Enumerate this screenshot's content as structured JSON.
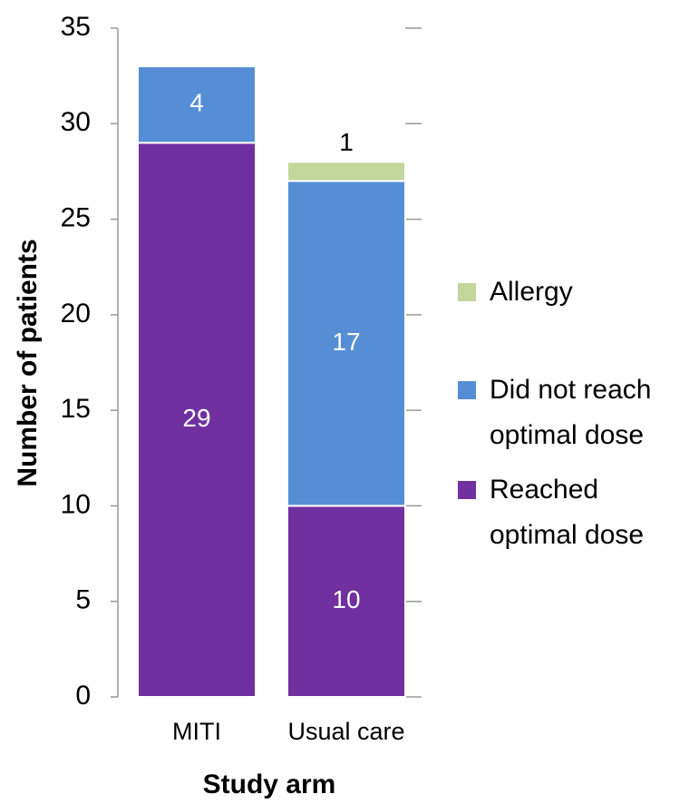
{
  "chart_data": {
    "type": "stacked_bar",
    "x_label": "Study arm",
    "y_label": "Number of patients",
    "categories": [
      "MITI",
      "Usual care"
    ],
    "series": [
      {
        "name": "Reached optimal dose",
        "color": "#7030a0",
        "values": [
          29,
          10
        ]
      },
      {
        "name": "Did not reach optimal dose",
        "color": "#558ed5",
        "values": [
          4,
          17
        ]
      },
      {
        "name": "Allergy",
        "color": "#c3d69b",
        "values": [
          0,
          1
        ]
      }
    ],
    "ylim": [
      0,
      35
    ],
    "yticks": [
      0,
      5,
      10,
      15,
      20,
      25,
      30,
      35
    ],
    "legend": "right"
  }
}
